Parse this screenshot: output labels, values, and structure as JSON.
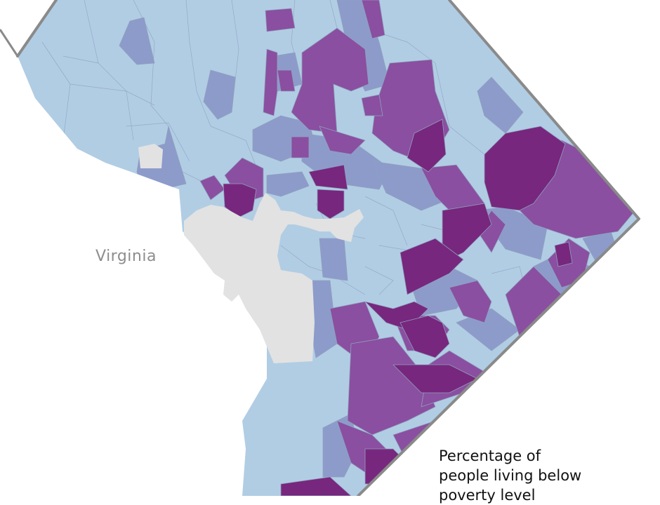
{
  "map": {
    "region_labels": {
      "virginia": "Virginia"
    },
    "legend": {
      "title": "Percentage of\npeople living below\npoverty level"
    },
    "colors": {
      "border": "#8a8a8a",
      "river": "#e2e2e2",
      "class_1": "#b1cde4",
      "class_2": "#8d9bcb",
      "class_3": "#8a4fa0",
      "class_4": "#77277e"
    }
  }
}
